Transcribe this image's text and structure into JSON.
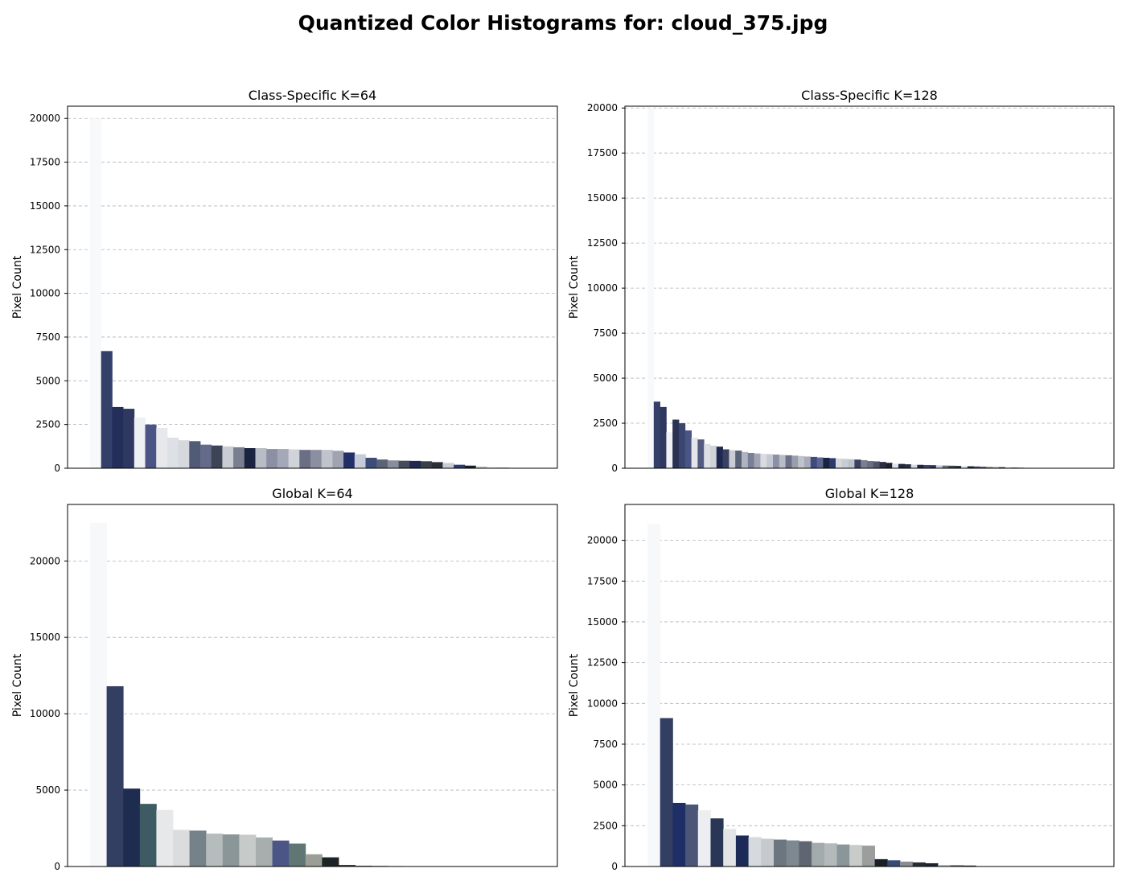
{
  "title": "Quantized Color Histograms for: cloud_375.jpg",
  "chart_data": [
    {
      "type": "bar",
      "title": "Class-Specific K=64",
      "ylabel": "Pixel Count",
      "xlabel": "",
      "ylim": [
        0,
        20700
      ],
      "yticks": [
        0,
        2500,
        5000,
        7500,
        10000,
        12500,
        15000,
        17500,
        20000
      ],
      "grid": true,
      "values": [
        20000,
        6700,
        3500,
        3400,
        2900,
        2500,
        2300,
        1750,
        1600,
        1550,
        1350,
        1300,
        1250,
        1200,
        1150,
        1150,
        1100,
        1100,
        1080,
        1050,
        1050,
        1050,
        1000,
        900,
        800,
        600,
        500,
        450,
        430,
        420,
        400,
        350,
        300,
        200,
        150,
        100,
        60,
        30,
        20
      ],
      "colors": [
        "#f7f9fa",
        "#33406a",
        "#232f5a",
        "#2e3860",
        "#eef0f4",
        "#4a5585",
        "#e6e8ec",
        "#dde0e4",
        "#d5d8dc",
        "#525b75",
        "#646a8a",
        "#3d4456",
        "#c9ccd2",
        "#7a7f90",
        "#1a2340",
        "#b8bcc4",
        "#8d90a5",
        "#a5a8b8",
        "#d0d3d8",
        "#6b6f85",
        "#8b8fa0",
        "#c0c3cb",
        "#a0a4b0",
        "#223068",
        "#c5cbd8",
        "#3e4c78",
        "#5a6478",
        "#8a8e9a",
        "#454c5e",
        "#1e2850",
        "#3a4048",
        "#2a2e38",
        "#c8ccd4",
        "#2d3a6e",
        "#1a1e28",
        "#c4c8d0",
        "#dde0e6",
        "#30343c",
        "#e2e5ea"
      ]
    },
    {
      "type": "bar",
      "title": "Class-Specific K=128",
      "ylabel": "Pixel Count",
      "xlabel": "",
      "ylim": [
        0,
        20100
      ],
      "yticks": [
        0,
        2500,
        5000,
        7500,
        10000,
        12500,
        15000,
        17500,
        20000
      ],
      "grid": true,
      "values": [
        20000,
        3700,
        3400,
        2000,
        2700,
        2500,
        2100,
        1700,
        1600,
        1350,
        1250,
        1200,
        1050,
        1000,
        980,
        900,
        850,
        820,
        800,
        780,
        760,
        740,
        720,
        700,
        680,
        650,
        630,
        600,
        580,
        560,
        540,
        520,
        500,
        480,
        450,
        400,
        380,
        350,
        300,
        250,
        240,
        220,
        200,
        190,
        180,
        170,
        160,
        150,
        140,
        130,
        120,
        110,
        100,
        90,
        80,
        70,
        60,
        50,
        40,
        30
      ],
      "colors": [
        "#f7f9fb",
        "#33406a",
        "#2e3860",
        "#eef0f4",
        "#293250",
        "#3a4670",
        "#4a5585",
        "#e4e6ea",
        "#525b80",
        "#dcdfe4",
        "#d0d3d8",
        "#1e2850",
        "#3a4060",
        "#c9ccd4",
        "#5a6478",
        "#b0b4c0",
        "#7a7f98",
        "#a0a4b4",
        "#d8dbe0",
        "#c4c8d0",
        "#8d90a5",
        "#b8bcc6",
        "#6b7088",
        "#9a9eac",
        "#c0c3cb",
        "#a8acb8",
        "#3e4c80",
        "#5c6690",
        "#1a2340",
        "#2d3a6e",
        "#d4d7dc",
        "#c8ccd4",
        "#bcc0c8",
        "#3a4060",
        "#7a7f90",
        "#6a6e80",
        "#50566a",
        "#2a2e40",
        "#1c2030",
        "#e0e3e8",
        "#20283c",
        "#2a3040",
        "#dadde2",
        "#1e2848",
        "#3a4668",
        "#283060",
        "#c8ccd2",
        "#6a7080",
        "#3c4250",
        "#2a2e38",
        "#e4e6ea",
        "#202838",
        "#3e4c78",
        "#5a6070",
        "#8a8e9a",
        "#a6aab4",
        "#30343c",
        "#c4c8d0",
        "#4a5060",
        "#2e323c"
      ]
    },
    {
      "type": "bar",
      "title": "Global K=64",
      "ylabel": "Pixel Count",
      "xlabel": "",
      "ylim": [
        0,
        23700
      ],
      "yticks": [
        0,
        5000,
        10000,
        15000,
        20000
      ],
      "grid": true,
      "values": [
        22500,
        11800,
        5100,
        4100,
        3700,
        2400,
        2350,
        2150,
        2100,
        2080,
        1900,
        1700,
        1500,
        800,
        600,
        100,
        50,
        40,
        30,
        20
      ],
      "colors": [
        "#f6f8f9",
        "#323e62",
        "#1e2c50",
        "#3e5a62",
        "#e7e8e9",
        "#dbdcdd",
        "#76828a",
        "#b6bcbc",
        "#8b9699",
        "#c6cac8",
        "#a8aeae",
        "#4b5686",
        "#607674",
        "#9a9e96",
        "#1c2428",
        "#2a3038",
        "#404850",
        "#5a6068",
        "#6c7278",
        "#2e3440"
      ]
    },
    {
      "type": "bar",
      "title": "Global K=128",
      "ylabel": "Pixel Count",
      "xlabel": "",
      "ylim": [
        0,
        22200
      ],
      "yticks": [
        0,
        2500,
        5000,
        7500,
        10000,
        12500,
        15000,
        17500,
        20000
      ],
      "grid": true,
      "values": [
        21000,
        9100,
        3900,
        3800,
        3450,
        2950,
        2300,
        1900,
        1800,
        1700,
        1650,
        1600,
        1550,
        1450,
        1420,
        1350,
        1320,
        1280,
        450,
        380,
        300,
        250,
        200,
        100,
        80,
        60
      ],
      "colors": [
        "#f6f8f9",
        "#323e62",
        "#202e68",
        "#4a5578",
        "#eceef2",
        "#2a3656",
        "#e2e4e6",
        "#1c2a58",
        "#d6dade",
        "#c6cacc",
        "#6c7680",
        "#7e8890",
        "#5e6672",
        "#a2aaac",
        "#b4baba",
        "#8a969a",
        "#c8ccc8",
        "#9a9e9c",
        "#1a2028",
        "#3a4a78",
        "#8a8e90",
        "#282c34",
        "#1e2430",
        "#c0c4c8",
        "#5a6068",
        "#30343c"
      ]
    }
  ]
}
